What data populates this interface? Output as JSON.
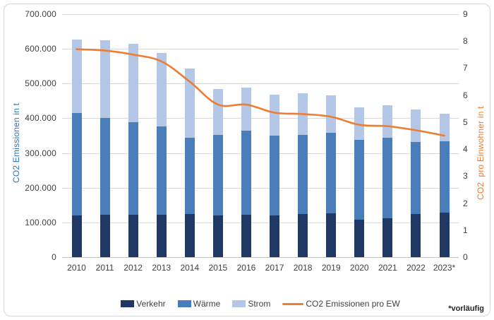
{
  "chart_data": {
    "type": "bar",
    "stacked": true,
    "title": "",
    "categories": [
      "2010",
      "2011",
      "2012",
      "2013",
      "2014",
      "2015",
      "2016",
      "2017",
      "2018",
      "2019",
      "2020",
      "2021",
      "2022",
      "2023*"
    ],
    "series": [
      {
        "name": "Verkehr",
        "color": "#1f3864",
        "values": [
          121000,
          123000,
          122000,
          123000,
          125000,
          120000,
          123000,
          121000,
          125000,
          126000,
          107000,
          111000,
          124000,
          128000
        ]
      },
      {
        "name": "Wärme",
        "color": "#4a7ebb",
        "values": [
          294000,
          278000,
          267000,
          254000,
          218000,
          232000,
          242000,
          228000,
          227000,
          233000,
          230000,
          233000,
          208000,
          206000
        ]
      },
      {
        "name": "Strom",
        "color": "#b4c7e7",
        "values": [
          211000,
          223000,
          226000,
          212000,
          201000,
          132000,
          124000,
          119000,
          120000,
          107000,
          94000,
          94000,
          93000,
          79000
        ]
      }
    ],
    "line_series": {
      "name": "CO2 Emissionen pro EW",
      "color": "#ed7d31",
      "axis": "right",
      "values": [
        7.7,
        7.65,
        7.5,
        7.25,
        6.5,
        5.65,
        5.65,
        5.35,
        5.3,
        5.2,
        4.9,
        4.85,
        4.7,
        4.5
      ]
    },
    "left_axis": {
      "label": "CO2 Emissionen in t",
      "color": "#2e75b6",
      "min": 0,
      "max": 700000,
      "tick_values": [
        0,
        100000,
        200000,
        300000,
        400000,
        500000,
        600000,
        700000
      ],
      "tick_labels": [
        "0",
        "100.000",
        "200.000",
        "300.000",
        "400.000",
        "500.000",
        "600.000",
        "700.000"
      ]
    },
    "right_axis": {
      "label": "CO2  pro Einwohner in t",
      "color": "#ed7d31",
      "min": 0,
      "max": 9,
      "tick_values": [
        0,
        1,
        2,
        3,
        4,
        5,
        6,
        7,
        8,
        9
      ],
      "tick_labels": [
        "0",
        "1",
        "2",
        "3",
        "4",
        "5",
        "6",
        "7",
        "8",
        "9"
      ]
    },
    "grid": true,
    "legend_position": "bottom",
    "footnote": "*vorläufig"
  }
}
